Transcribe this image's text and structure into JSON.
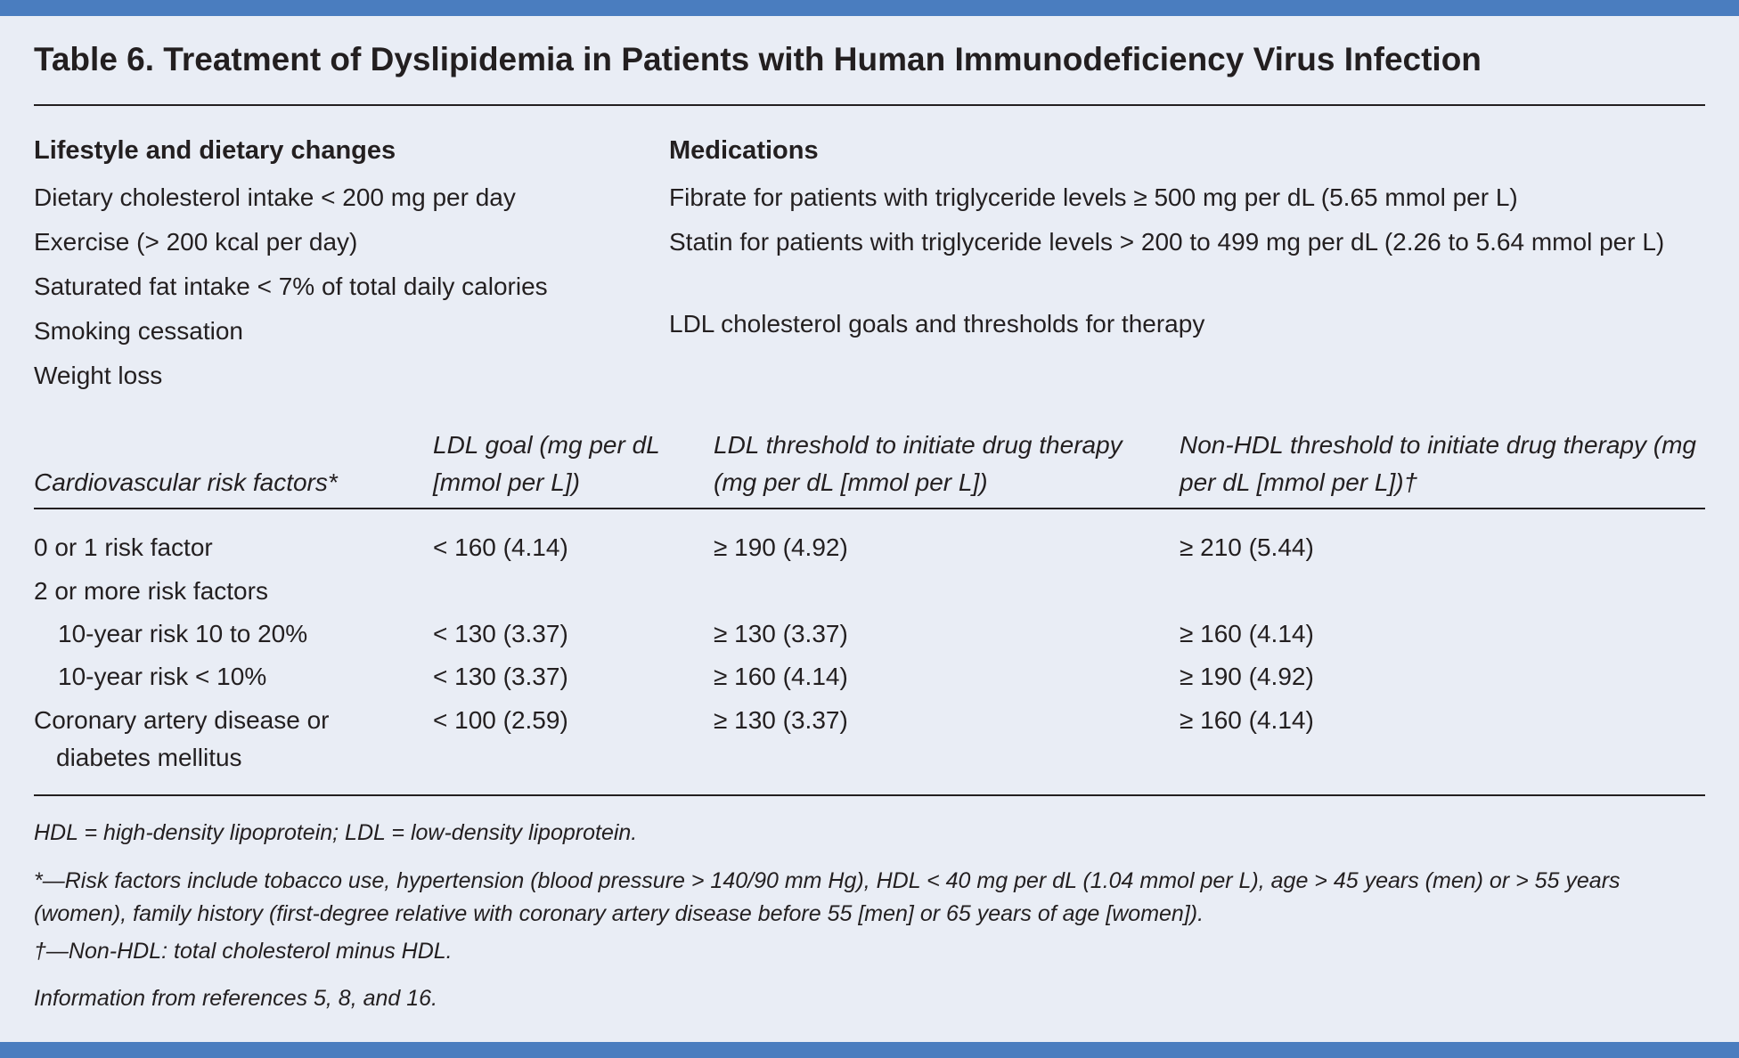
{
  "title": "Table 6. Treatment of Dyslipidemia in Patients with Human Immunodeficiency Virus Infection",
  "lifestyle": {
    "heading": "Lifestyle and dietary changes",
    "items": [
      "Dietary cholesterol intake < 200 mg per day",
      "Exercise (> 200 kcal per day)",
      "Saturated fat intake < 7% of total daily calories",
      "Smoking cessation",
      "Weight loss"
    ]
  },
  "medications": {
    "heading": "Medications",
    "items": [
      "Fibrate for patients with triglyceride levels ≥ 500 mg per dL (5.65 mmol per L)",
      "Statin for patients with triglyceride levels > 200 to 499 mg per dL (2.26 to 5.64 mmol per L)",
      "LDL cholesterol goals and thresholds for therapy"
    ]
  },
  "table": {
    "headers": [
      "Cardiovascular risk factors*",
      "LDL goal (mg per dL [mmol per L])",
      "LDL threshold to initiate drug therapy (mg per dL [mmol per L])",
      "Non-HDL threshold to initiate drug therapy (mg per dL [mmol per L])†"
    ],
    "rows": [
      [
        "0 or 1 risk factor",
        "< 160 (4.14)",
        "≥ 190 (4.92)",
        "≥ 210 (5.44)"
      ],
      [
        "2 or more risk factors",
        "",
        "",
        ""
      ],
      [
        "10-year risk 10 to 20%",
        "< 130 (3.37)",
        "≥ 130 (3.37)",
        "≥ 160 (4.14)"
      ],
      [
        "10-year risk < 10%",
        "< 130 (3.37)",
        "≥ 160 (4.14)",
        "≥ 190 (4.92)"
      ],
      [
        "Coronary artery disease or diabetes mellitus",
        "< 100 (2.59)",
        "≥ 130 (3.37)",
        "≥ 160 (4.14)"
      ]
    ]
  },
  "footnotes": [
    "HDL = high-density lipoprotein; LDL = low-density lipoprotein.",
    "*—Risk factors include tobacco use, hypertension (blood pressure > 140/90 mm Hg), HDL < 40 mg per dL (1.04 mmol per L), age > 45 years (men) or > 55 years (women), family history (first-degree relative with coronary artery disease before 55 [men] or 65 years of age [women]).",
    "†—Non-HDL: total cholesterol minus HDL.",
    "Information from references 5, 8, and 16."
  ]
}
